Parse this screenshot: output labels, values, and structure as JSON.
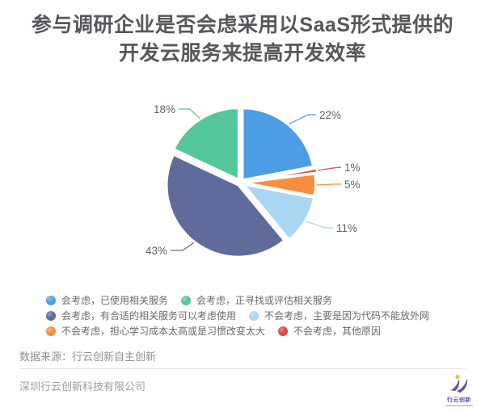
{
  "title": {
    "line1": "参与调研企业是否会虑采用以SaaS形式提供的",
    "line2": "开发云服务来提高开发效率"
  },
  "chart_data": {
    "type": "pie",
    "title": "参与调研企业是否会虑采用以SaaS形式提供的开发云服务来提高开发效率",
    "unit": "%",
    "start_angle": "top",
    "direction": "clockwise",
    "slices": [
      {
        "label": "会考虑，已使用相关服务",
        "value": 22,
        "color": "#4c9de4"
      },
      {
        "label": "不会考虑，其他原因",
        "value": 1,
        "color": "#db4a43"
      },
      {
        "label": "不会考虑，担心学习成本太高或是习惯改变太大",
        "value": 5,
        "color": "#f78e3e"
      },
      {
        "label": "不会考虑，主要是因为代码不能放外网",
        "value": 11,
        "color": "#a9d6f1"
      },
      {
        "label": "会考虑，有合适的相关服务可以考虑使用",
        "value": 43,
        "color": "#5e6b9b"
      },
      {
        "label": "会考虑，正寻找或评估相关服务",
        "value": 18,
        "color": "#55c89b"
      }
    ],
    "legend": [
      {
        "label": "会考虑，已使用相关服务",
        "color": "#4c9de4"
      },
      {
        "label": "会考虑，正寻找或评估相关服务",
        "color": "#55c89b"
      },
      {
        "label": "会考虑，有合适的相关服务可以考虑使用",
        "color": "#5e6b9b"
      },
      {
        "label": "不会考虑，主要是因为代码不能放外网",
        "color": "#a9d6f1"
      },
      {
        "label": "不会考虑，担心学习成本太高或是习惯改变太大",
        "color": "#f78e3e"
      },
      {
        "label": "不会考虑，其他原因",
        "color": "#db4a43"
      }
    ],
    "legend_position": "bottom",
    "label_color": "#5f6368"
  },
  "footer": {
    "source": "数据来源：行云创新自主创新",
    "company": "深圳行云创新科技有限公司"
  },
  "logo": {
    "text": "行云创新",
    "purple": "#6b4f9e",
    "yellow": "#f2bd42"
  }
}
